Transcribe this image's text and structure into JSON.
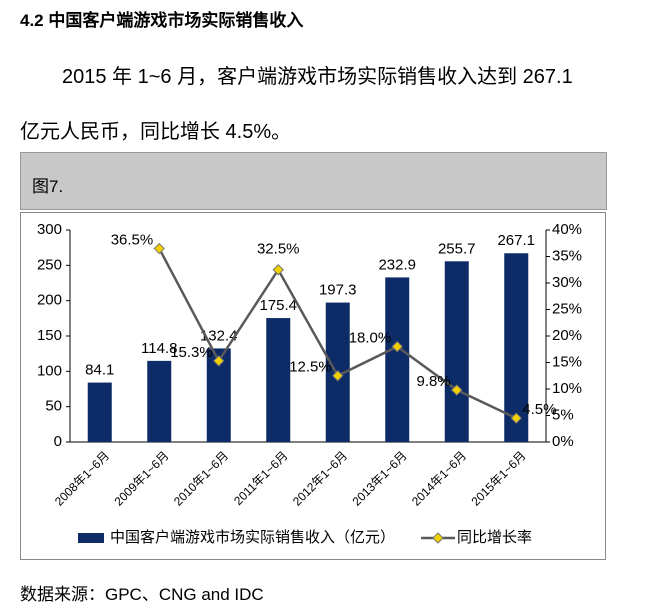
{
  "heading": "4.2 中国客户端游戏市场实际销售收入",
  "paragraph": [
    "2015 年 1~6 月，客户端游戏市场实际销售收入达到 267.1",
    "亿元人民币，同比增长 4.5%。"
  ],
  "figure_label": "图7.",
  "source": "数据来源：GPC、CNG and IDC",
  "chart_data": {
    "type": "bar",
    "categories": [
      "2008年1~6月",
      "2009年1~6月",
      "2010年1~6月",
      "2011年1~6月",
      "2012年1~6月",
      "2013年1~6月",
      "2014年1~6月",
      "2015年1~6月"
    ],
    "series": [
      {
        "name": "中国客户端游戏市场实际销售收入（亿元）",
        "type": "bar",
        "color": "#0d2b66",
        "values": [
          84.1,
          114.8,
          132.4,
          175.4,
          197.3,
          232.9,
          255.7,
          267.1
        ]
      },
      {
        "name": "同比增长率",
        "type": "line",
        "axis": "y2",
        "color": "#595959",
        "marker_color": "#f2d000",
        "values": [
          null,
          36.5,
          15.3,
          32.5,
          12.5,
          18.0,
          9.8,
          4.5
        ],
        "value_labels": [
          null,
          "36.5%",
          "15.3%",
          "32.5%",
          "12.5%",
          "18.0%",
          "9.8%",
          "4.5%"
        ]
      }
    ],
    "ylim": [
      0,
      300
    ],
    "yticks": [
      0,
      50,
      100,
      150,
      200,
      250,
      300
    ],
    "y2lim": [
      0,
      40
    ],
    "y2ticks": [
      {
        "value": 0,
        "label": "0%"
      },
      {
        "value": 5,
        "label": "5%"
      },
      {
        "value": 10,
        "label": "10%"
      },
      {
        "value": 15,
        "label": "15%"
      },
      {
        "value": 20,
        "label": "20%"
      },
      {
        "value": 25,
        "label": "25%"
      },
      {
        "value": 30,
        "label": "30%"
      },
      {
        "value": 35,
        "label": "35%"
      },
      {
        "value": 40,
        "label": "40%"
      }
    ],
    "legend": "bottom"
  }
}
